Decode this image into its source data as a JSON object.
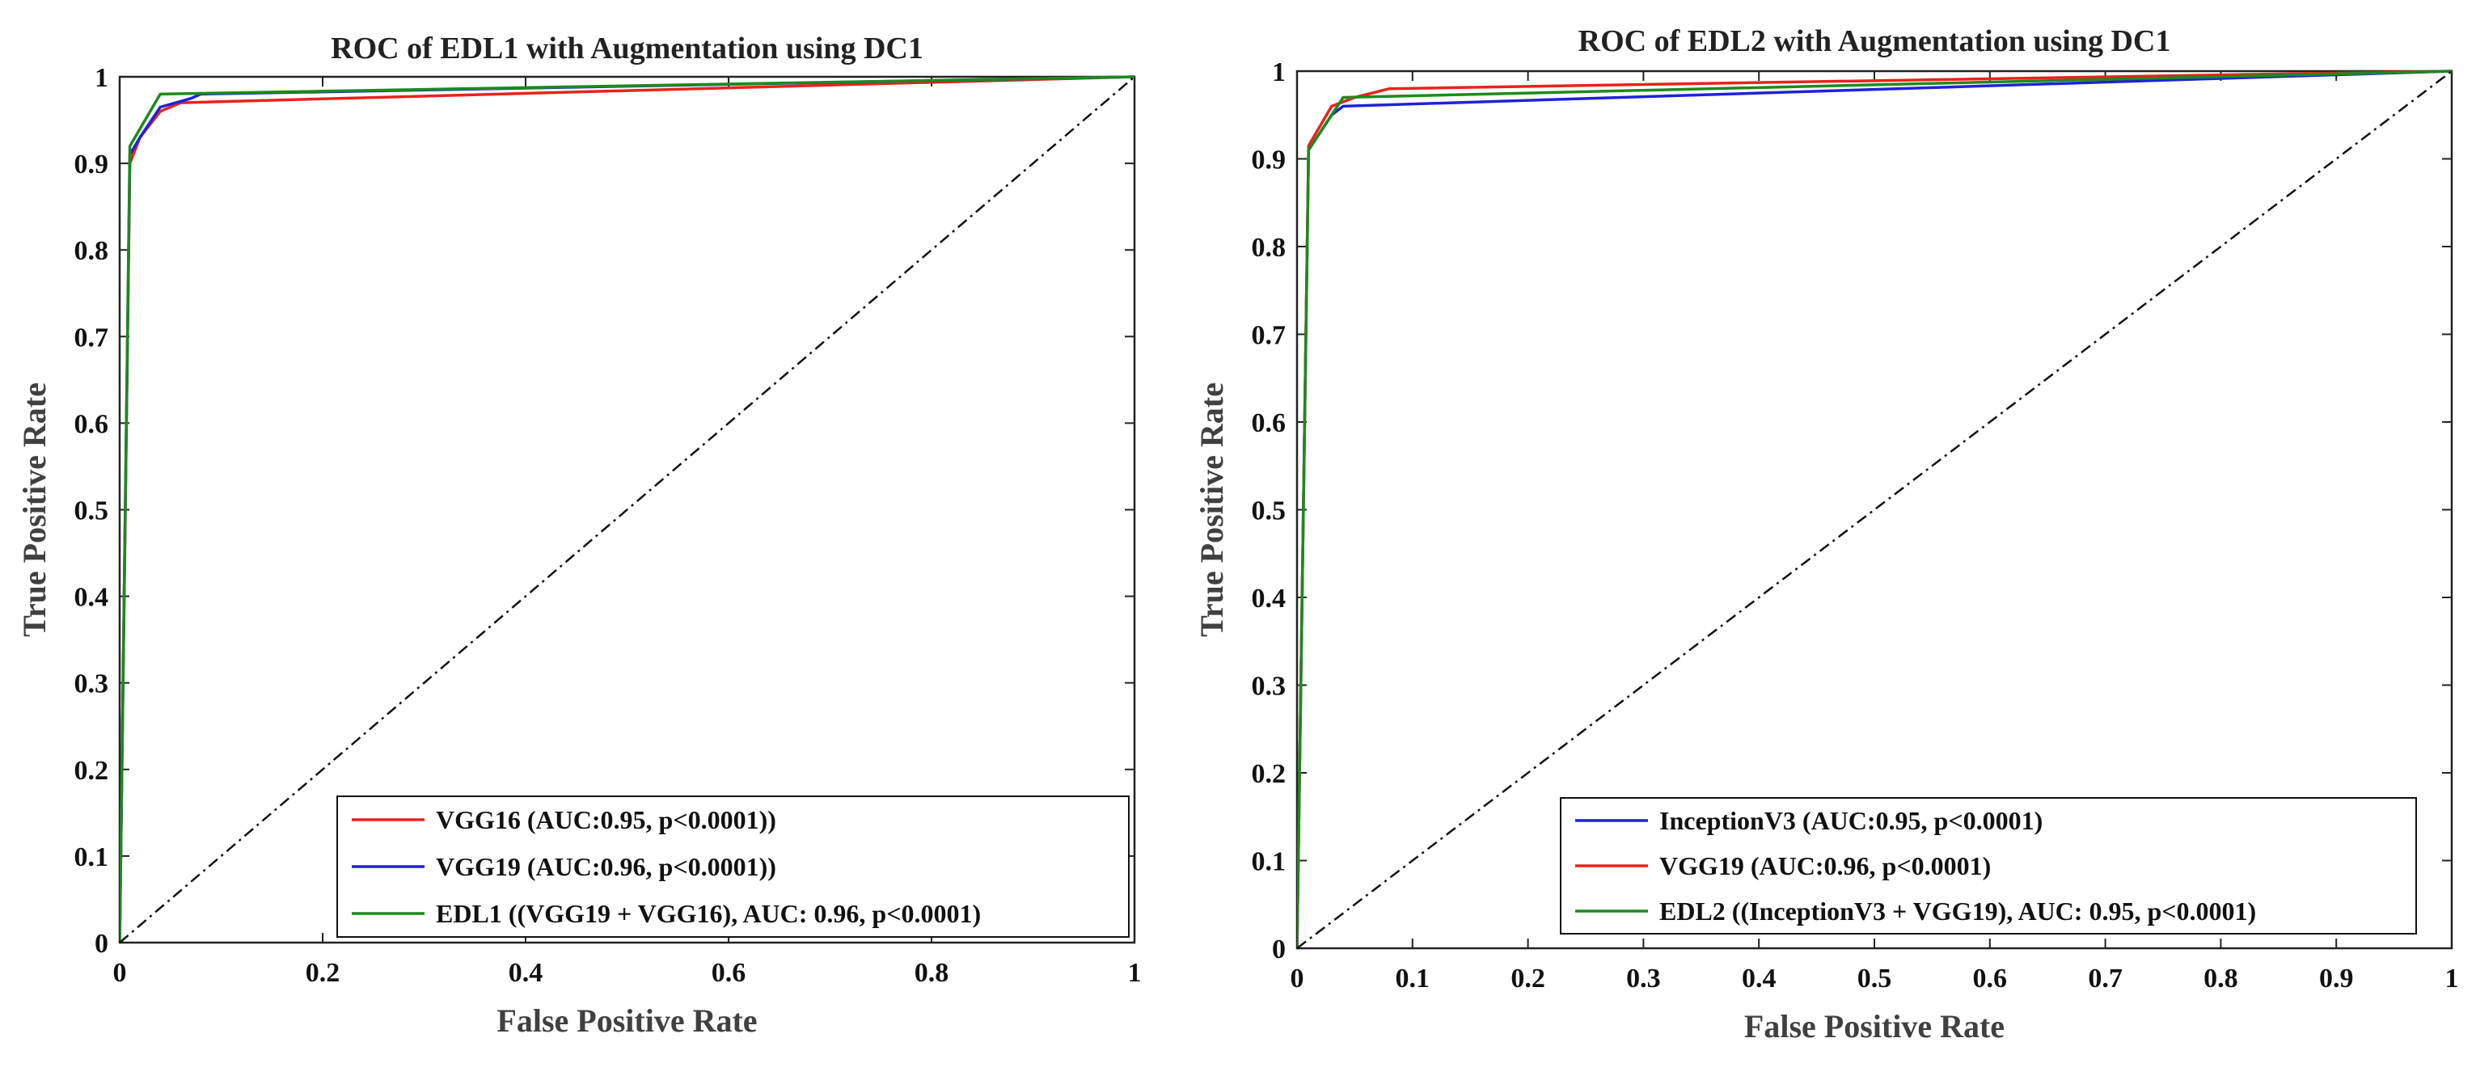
{
  "chart_data": [
    {
      "type": "line",
      "title": "ROC of EDL1 with Augmentation using DC1",
      "xlabel": "False Positive Rate",
      "ylabel": "True Positive Rate",
      "xlim": [
        0,
        1
      ],
      "ylim": [
        0,
        1
      ],
      "xticks": [
        0,
        0.2,
        0.4,
        0.6,
        0.8,
        1
      ],
      "xtick_labels": [
        "0",
        "0.2",
        "0.4",
        "0.6",
        "0.8",
        "1"
      ],
      "yticks": [
        0,
        0.1,
        0.2,
        0.3,
        0.4,
        0.5,
        0.6,
        0.7,
        0.8,
        0.9,
        1
      ],
      "ytick_labels": [
        "0",
        "0.1",
        "0.2",
        "0.3",
        "0.4",
        "0.5",
        "0.6",
        "0.7",
        "0.8",
        "0.9",
        "1"
      ],
      "legend_position": "bottom-right",
      "series": [
        {
          "name": "VGG16 (AUC:0.95, p<0.0001))",
          "color": "#e8231c",
          "x": [
            0,
            0.01,
            0.02,
            0.04,
            0.06,
            1
          ],
          "y": [
            0,
            0.9,
            0.93,
            0.96,
            0.97,
            1
          ]
        },
        {
          "name": "VGG19 (AUC:0.96, p<0.0001))",
          "color": "#1f22d6",
          "x": [
            0,
            0.01,
            0.02,
            0.04,
            0.07,
            0.08,
            1
          ],
          "y": [
            0,
            0.91,
            0.93,
            0.965,
            0.975,
            0.98,
            1
          ]
        },
        {
          "name": "EDL1 ((VGG19 + VGG16), AUC: 0.96, p<0.0001)",
          "color": "#1d8a1d",
          "x": [
            0,
            0.01,
            0.04,
            1
          ],
          "y": [
            0,
            0.92,
            0.98,
            1
          ]
        },
        {
          "name": "",
          "color": "#111111",
          "style": "dashdot",
          "x": [
            0,
            1
          ],
          "y": [
            0,
            1
          ]
        }
      ]
    },
    {
      "type": "line",
      "title": "ROC of EDL2 with Augmentation using DC1",
      "xlabel": "False Positive Rate",
      "ylabel": "True Positive Rate",
      "xlim": [
        0,
        1
      ],
      "ylim": [
        0,
        1
      ],
      "xticks": [
        0,
        0.1,
        0.2,
        0.3,
        0.4,
        0.5,
        0.6,
        0.7,
        0.8,
        0.9,
        1
      ],
      "xtick_labels": [
        "0",
        "0.1",
        "0.2",
        "0.3",
        "0.4",
        "0.5",
        "0.6",
        "0.7",
        "0.8",
        "0.9",
        "1"
      ],
      "yticks": [
        0,
        0.1,
        0.2,
        0.3,
        0.4,
        0.5,
        0.6,
        0.7,
        0.8,
        0.9,
        1
      ],
      "ytick_labels": [
        "0",
        "0.1",
        "0.2",
        "0.3",
        "0.4",
        "0.5",
        "0.6",
        "0.7",
        "0.8",
        "0.9",
        "1"
      ],
      "legend_position": "bottom-right",
      "series": [
        {
          "name": "InceptionV3 (AUC:0.95, p<0.0001)",
          "color": "#1f22d6",
          "x": [
            0,
            0.01,
            0.03,
            0.04,
            1
          ],
          "y": [
            0,
            0.91,
            0.95,
            0.96,
            1
          ]
        },
        {
          "name": "VGG19 (AUC:0.96, p<0.0001)",
          "color": "#e8231c",
          "x": [
            0,
            0.01,
            0.03,
            0.05,
            0.08,
            1
          ],
          "y": [
            0,
            0.915,
            0.96,
            0.97,
            0.98,
            1
          ]
        },
        {
          "name": "EDL2 ((InceptionV3 + VGG19), AUC: 0.95, p<0.0001)",
          "color": "#1d8a1d",
          "x": [
            0,
            0.01,
            0.04,
            1
          ],
          "y": [
            0,
            0.91,
            0.97,
            1
          ]
        },
        {
          "name": "",
          "color": "#111111",
          "style": "dashdot",
          "x": [
            0,
            1
          ],
          "y": [
            0,
            1
          ]
        }
      ]
    }
  ]
}
